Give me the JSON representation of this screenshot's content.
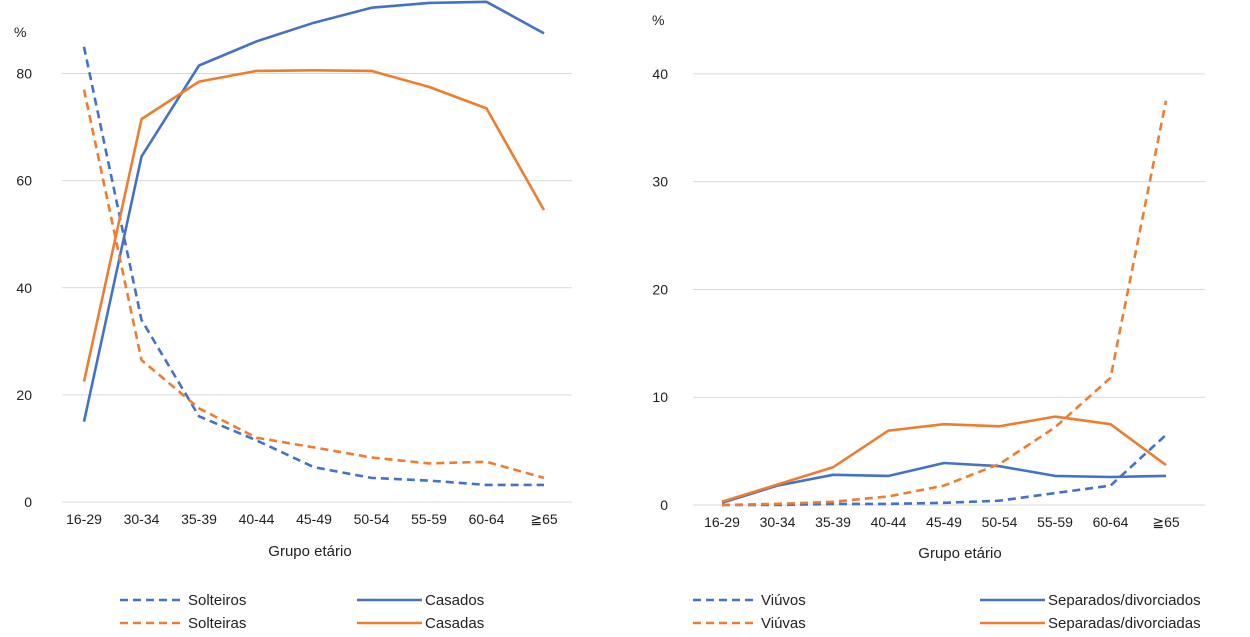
{
  "colors": {
    "blue": "#4472C4",
    "orange": "#ED7D31",
    "grid": "#D9D9D9"
  },
  "chart_data": [
    {
      "type": "line",
      "title": "",
      "ylabel": "%",
      "xlabel": "Grupo etário",
      "ylim": [
        0,
        90
      ],
      "yticks": [
        0,
        20,
        40,
        60,
        80
      ],
      "categories": [
        "16-29",
        "30-34",
        "35-39",
        "40-44",
        "45-49",
        "50-54",
        "55-59",
        "60-64",
        "≧65"
      ],
      "grid": true,
      "legend_position": "bottom",
      "series": [
        {
          "name": "Solteiros",
          "color": "#4472C4",
          "dash": true,
          "values": [
            85,
            34,
            16,
            11.5,
            6.5,
            4.5,
            4,
            3.2,
            3.2
          ]
        },
        {
          "name": "Casados",
          "color": "#4472C4",
          "dash": false,
          "values": [
            15,
            64.5,
            81.5,
            86,
            89.5,
            92.3,
            93.2,
            93.4,
            87.5
          ]
        },
        {
          "name": "Solteiras",
          "color": "#ED7D31",
          "dash": true,
          "values": [
            77,
            26.5,
            17.5,
            12,
            10.2,
            8.3,
            7.2,
            7.5,
            4.5
          ]
        },
        {
          "name": "Casadas",
          "color": "#ED7D31",
          "dash": false,
          "values": [
            22.5,
            71.5,
            78.5,
            80.5,
            80.6,
            80.5,
            77.5,
            73.5,
            54.5
          ]
        }
      ]
    },
    {
      "type": "line",
      "title": "",
      "ylabel": "%",
      "xlabel": "Grupo etário",
      "ylim": [
        0,
        45
      ],
      "yticks": [
        0,
        10,
        20,
        30,
        40
      ],
      "categories": [
        "16-29",
        "30-34",
        "35-39",
        "40-44",
        "45-49",
        "50-54",
        "55-59",
        "60-64",
        "≧65"
      ],
      "grid": true,
      "legend_position": "bottom",
      "series": [
        {
          "name": "Viúvos",
          "color": "#4472C4",
          "dash": true,
          "values": [
            0,
            0,
            0.1,
            0.1,
            0.2,
            0.4,
            1.1,
            1.8,
            6.5
          ]
        },
        {
          "name": "Separados/divorciados",
          "color": "#4472C4",
          "dash": false,
          "values": [
            0.2,
            1.8,
            2.8,
            2.7,
            3.9,
            3.6,
            2.7,
            2.6,
            2.7
          ]
        },
        {
          "name": "Viúvas",
          "color": "#ED7D31",
          "dash": true,
          "values": [
            0,
            0.1,
            0.3,
            0.8,
            1.8,
            3.8,
            7.2,
            11.8,
            37.5
          ]
        },
        {
          "name": "Separadas/divorciadas",
          "color": "#ED7D31",
          "dash": false,
          "values": [
            0.3,
            1.9,
            3.5,
            6.9,
            7.5,
            7.3,
            8.2,
            7.5,
            3.7
          ]
        }
      ]
    }
  ]
}
